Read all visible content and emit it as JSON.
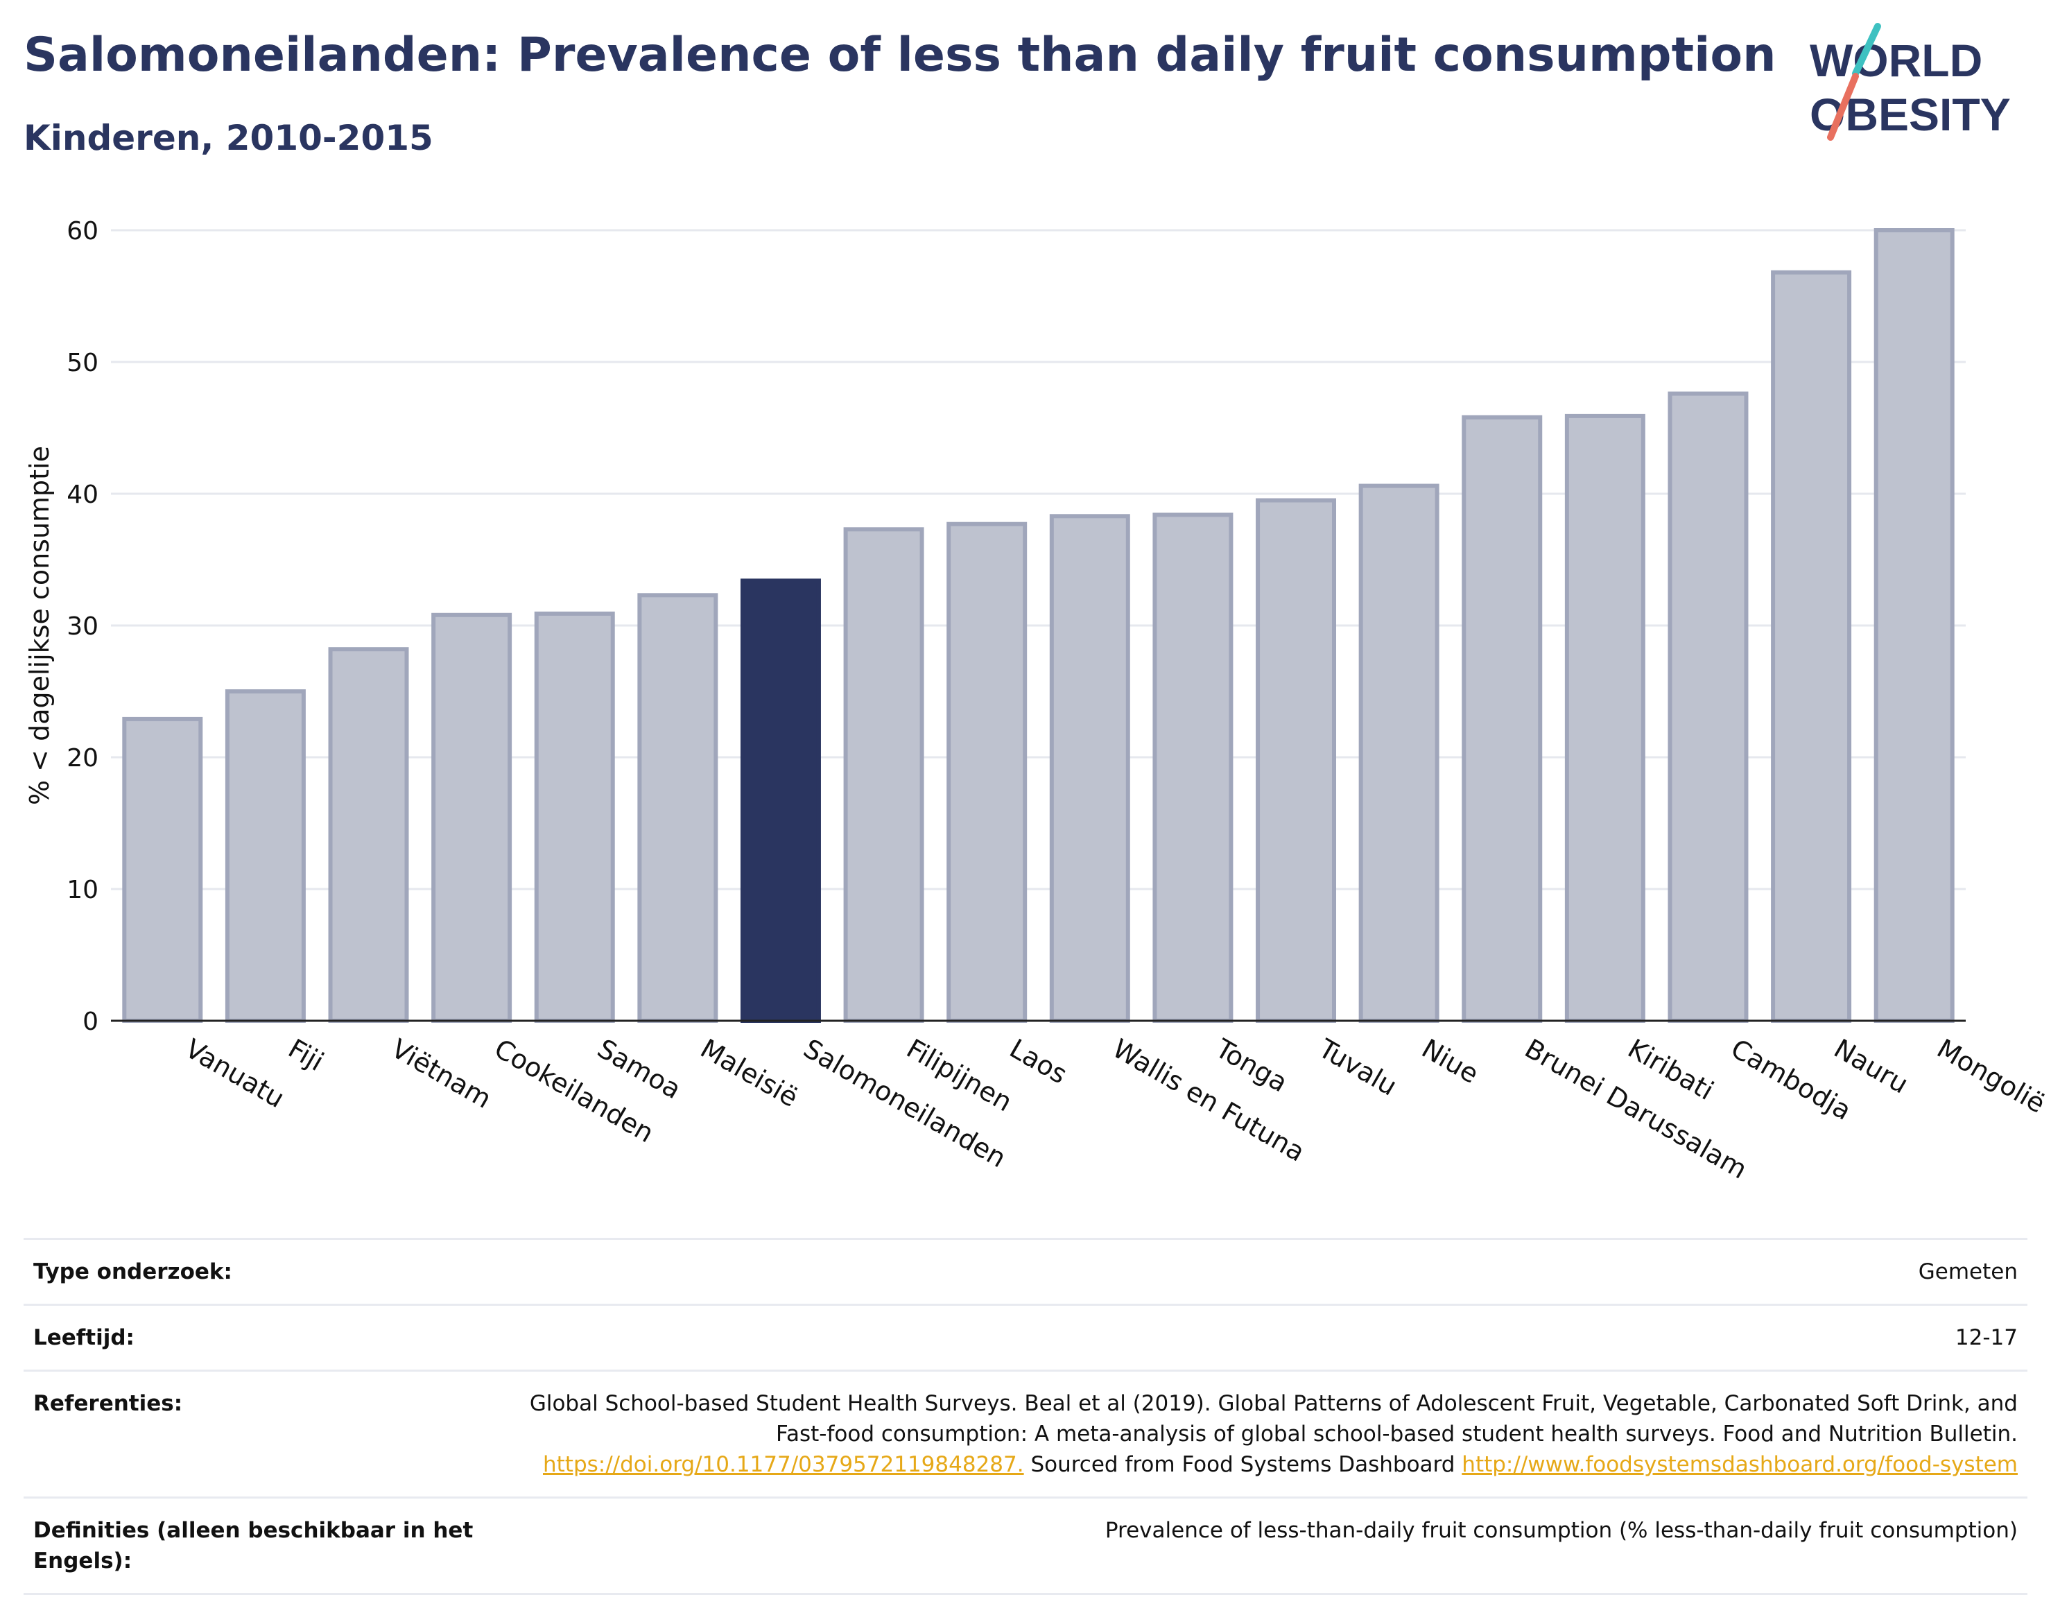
{
  "header": {
    "title": "Salomoneilanden: Prevalence of less than daily fruit consumption",
    "subtitle": "Kinderen, 2010-2015"
  },
  "logo": {
    "line1": "WORLD",
    "line2": "OBESITY"
  },
  "colors": {
    "highlight": "#2a3560",
    "bar": "#bec2cf",
    "bar_border": "#a0a6bb",
    "accent_teal": "#3ec1c1",
    "accent_red": "#e8705f"
  },
  "chart_data": {
    "type": "bar",
    "ylabel": "% < dagelijkse consumptie",
    "ylim": [
      0,
      60
    ],
    "yticks": [
      0,
      10,
      20,
      30,
      40,
      50,
      60
    ],
    "grid": true,
    "highlight": "Salomoneilanden",
    "categories": [
      "Vanuatu",
      "Fiji",
      "Viëtnam",
      "Cookeilanden",
      "Samoa",
      "Maleisië",
      "Salomoneilanden",
      "Filipijnen",
      "Laos",
      "Wallis en Futuna",
      "Tonga",
      "Tuvalu",
      "Niue",
      "Brunei Darussalam",
      "Kiribati",
      "Cambodja",
      "Nauru",
      "Mongolië"
    ],
    "values": [
      22.9,
      25.0,
      28.2,
      30.8,
      30.9,
      32.3,
      33.4,
      37.3,
      37.7,
      38.3,
      38.4,
      39.5,
      40.6,
      45.8,
      45.9,
      47.6,
      56.8,
      60.0
    ]
  },
  "meta": {
    "type_label": "Type onderzoek:",
    "type_value": "Gemeten",
    "age_label": "Leeftijd:",
    "age_value": "12-17",
    "ref_label": "Referenties:",
    "ref_text1": "Global School-based Student Health Surveys. Beal et al (2019). Global Patterns of Adolescent Fruit, Vegetable, Carbonated Soft Drink, and Fast-food consumption: A meta-analysis of global school-based student health surveys. Food and Nutrition Bulletin.",
    "ref_link1": "https://doi.org/10.1177/0379572119848287.",
    "ref_text2": "Sourced from Food Systems Dashboard",
    "ref_link2": "http://www.foodsystemsdashboard.org/food-system",
    "def_label": "Definities (alleen beschikbaar in het Engels):",
    "def_value": "Prevalence of less-than-daily fruit consumption (% less-than-daily fruit consumption)"
  }
}
